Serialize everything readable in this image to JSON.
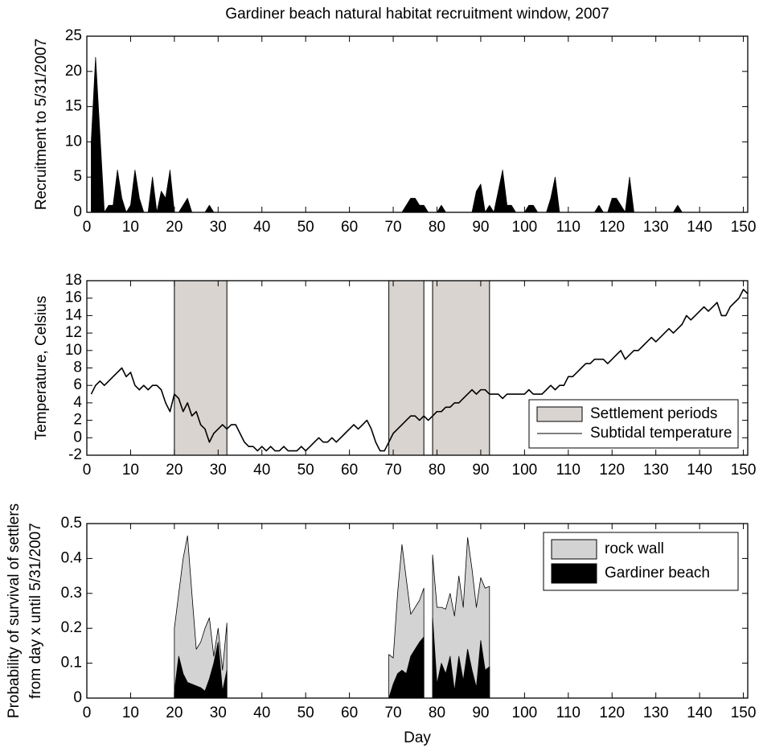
{
  "chart_data": [
    {
      "type": "area",
      "title": "Gardiner beach natural habitat recruitment window, 2007",
      "ylabel": "Recruitment to 5/31/2007",
      "color": "#000000",
      "x": [
        1,
        2,
        3,
        4,
        5,
        6,
        7,
        8,
        9,
        10,
        11,
        12,
        13,
        14,
        15,
        16,
        17,
        18,
        19,
        20,
        21,
        22,
        23,
        24,
        27,
        28,
        29,
        72,
        73,
        74,
        75,
        76,
        77,
        78,
        80,
        81,
        82,
        88,
        89,
        90,
        91,
        92,
        93,
        94,
        95,
        96,
        97,
        98,
        100,
        101,
        102,
        103,
        105,
        106,
        107,
        108,
        116,
        117,
        118,
        119,
        120,
        121,
        122,
        123,
        124,
        125,
        134,
        135,
        136,
        151
      ],
      "values": [
        10,
        22,
        11,
        0,
        1,
        1,
        6,
        2,
        0,
        1,
        6,
        2,
        0,
        0,
        5,
        0,
        3,
        2,
        6,
        0,
        0,
        1,
        2,
        0,
        0,
        1,
        0,
        0,
        1,
        2,
        2,
        1,
        1,
        0,
        0,
        1,
        0,
        0,
        3,
        4,
        0,
        1,
        0,
        3,
        6,
        1,
        1,
        0,
        0,
        1,
        1,
        0,
        0,
        2,
        5,
        0,
        0,
        1,
        0,
        0,
        2,
        2,
        1,
        0,
        5,
        0,
        0,
        1,
        0,
        0
      ],
      "xlim": [
        0,
        151
      ],
      "xticks": [
        0,
        10,
        20,
        30,
        40,
        50,
        60,
        70,
        80,
        90,
        100,
        110,
        120,
        130,
        140,
        150
      ],
      "ylim": [
        0,
        25
      ],
      "yticks": [
        0,
        5,
        10,
        15,
        20,
        25
      ]
    },
    {
      "type": "line",
      "ylabel": "Temperature, Celsius",
      "legend": "lower right",
      "spans": {
        "name": "Settlement periods",
        "color": "#d9d4cf",
        "ranges": [
          [
            20,
            32
          ],
          [
            69,
            77
          ],
          [
            79,
            92
          ]
        ]
      },
      "x": [
        1,
        2,
        3,
        4,
        5,
        6,
        7,
        8,
        9,
        10,
        11,
        12,
        13,
        14,
        15,
        16,
        17,
        18,
        19,
        20,
        21,
        22,
        23,
        24,
        25,
        26,
        27,
        28,
        29,
        30,
        31,
        32,
        33,
        34,
        35,
        36,
        37,
        38,
        39,
        40,
        41,
        42,
        43,
        44,
        45,
        46,
        47,
        48,
        49,
        50,
        51,
        52,
        53,
        54,
        55,
        56,
        57,
        58,
        59,
        60,
        61,
        62,
        63,
        64,
        65,
        66,
        67,
        68,
        69,
        70,
        71,
        72,
        73,
        74,
        75,
        76,
        77,
        78,
        79,
        80,
        81,
        82,
        83,
        84,
        85,
        86,
        87,
        88,
        89,
        90,
        91,
        92,
        93,
        94,
        95,
        96,
        97,
        98,
        99,
        100,
        101,
        102,
        103,
        104,
        105,
        106,
        107,
        108,
        109,
        110,
        111,
        112,
        113,
        114,
        115,
        116,
        117,
        118,
        119,
        120,
        121,
        122,
        123,
        124,
        125,
        126,
        127,
        128,
        129,
        130,
        131,
        132,
        133,
        134,
        135,
        136,
        137,
        138,
        139,
        140,
        141,
        142,
        143,
        144,
        145,
        146,
        147,
        148,
        149,
        150,
        151
      ],
      "series": [
        {
          "name": "Subtidal temperature",
          "color": "#000000",
          "values": [
            5,
            6,
            6.5,
            6,
            6.5,
            7,
            7.5,
            8,
            7,
            7.5,
            6,
            5.5,
            6,
            5.5,
            6,
            6,
            5.5,
            4,
            3,
            5,
            4.5,
            3,
            4,
            2.5,
            3,
            1.5,
            1,
            -0.5,
            0.5,
            1,
            1.5,
            1,
            1.5,
            1.5,
            0.5,
            -0.5,
            -1,
            -1,
            -1.5,
            -1,
            -1.5,
            -1,
            -1.5,
            -1.5,
            -1,
            -1.5,
            -1.5,
            -1.5,
            -1,
            -1.5,
            -1,
            -0.5,
            0,
            -0.5,
            -0.5,
            0,
            -0.5,
            0,
            0.5,
            1,
            1.5,
            1,
            1.5,
            2,
            1,
            -0.5,
            -1.5,
            -1.5,
            -0.5,
            0.5,
            1,
            1.5,
            2,
            2.5,
            2.5,
            2,
            2.5,
            2,
            2.5,
            3,
            3,
            3.5,
            3.5,
            4,
            4,
            4.5,
            5,
            5.5,
            5,
            5.5,
            5.5,
            5,
            5,
            5,
            4.5,
            5,
            5,
            5,
            5,
            5,
            5.5,
            5,
            5,
            5,
            5.5,
            6,
            5.5,
            6,
            6,
            7,
            7,
            7.5,
            8,
            8.5,
            8.5,
            9,
            9,
            9,
            8.5,
            9,
            9.5,
            10,
            9,
            9.5,
            10,
            10,
            10.5,
            11,
            11.5,
            11,
            11.5,
            12,
            12.5,
            12,
            12.5,
            13,
            14,
            13.5,
            14,
            14.5,
            15,
            14.5,
            15,
            15.5,
            14,
            14,
            15,
            15.5,
            16,
            17,
            16.5
          ]
        }
      ],
      "xlim": [
        0,
        151
      ],
      "xticks": [
        0,
        10,
        20,
        30,
        40,
        50,
        60,
        70,
        80,
        90,
        100,
        110,
        120,
        130,
        140,
        150
      ],
      "ylim": [
        -2,
        18
      ],
      "yticks": [
        -2,
        0,
        2,
        4,
        6,
        8,
        10,
        12,
        14,
        16,
        18
      ]
    },
    {
      "type": "area",
      "ylabel": [
        "Probability of survival of settlers",
        "from day x until 5/31/2007"
      ],
      "xlabel": "Day",
      "legend": "upper right",
      "x": [
        20,
        21,
        22,
        23,
        24,
        25,
        26,
        27,
        28,
        29,
        30,
        31,
        32,
        33,
        69,
        70,
        71,
        72,
        73,
        74,
        75,
        76,
        77,
        78,
        79,
        80,
        81,
        82,
        83,
        84,
        85,
        86,
        87,
        88,
        89,
        90,
        91,
        92
      ],
      "series": [
        {
          "name": "rock wall",
          "color": "#d3d3d3",
          "values": [
            0.2,
            0.3,
            0.4,
            0.465,
            0.3,
            0.14,
            0.16,
            0.2,
            0.23,
            0.12,
            0.2,
            0.08,
            0.215,
            null,
            0.125,
            0.115,
            0.3,
            0.44,
            0.34,
            0.24,
            0.26,
            0.28,
            0.315,
            null,
            0.41,
            0.26,
            0.26,
            0.255,
            0.3,
            0.235,
            0.35,
            0.26,
            0.46,
            0.37,
            0.26,
            0.345,
            0.315,
            0.32
          ]
        },
        {
          "name": "Gardiner beach",
          "color": "#000000",
          "values": [
            0.02,
            0.12,
            0.07,
            0.045,
            0.04,
            0.035,
            0.03,
            0.02,
            0.055,
            0.1,
            0.16,
            0.02,
            0.08,
            null,
            0,
            0.04,
            0.07,
            0.08,
            0.07,
            0.12,
            0.14,
            0.16,
            0.175,
            null,
            0.23,
            0.04,
            0.1,
            0.07,
            0.12,
            0.02,
            0.12,
            0.05,
            0.14,
            0.08,
            0.03,
            0.165,
            0.08,
            0.09
          ]
        }
      ],
      "xlim": [
        0,
        151
      ],
      "xticks": [
        0,
        10,
        20,
        30,
        40,
        50,
        60,
        70,
        80,
        90,
        100,
        110,
        120,
        130,
        140,
        150
      ],
      "ylim": [
        0,
        0.5
      ],
      "yticks": [
        0,
        0.1,
        0.2,
        0.3,
        0.4,
        0.5
      ]
    }
  ]
}
